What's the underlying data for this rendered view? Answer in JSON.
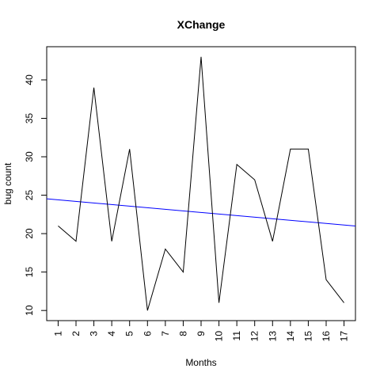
{
  "chart_data": {
    "type": "line",
    "title": "XChange",
    "xlabel": "Months",
    "ylabel": "bug count",
    "x": [
      1,
      2,
      3,
      4,
      5,
      6,
      7,
      8,
      9,
      10,
      11,
      12,
      13,
      14,
      15,
      16,
      17
    ],
    "x_tick_labels": [
      "1",
      "2",
      "3",
      "4",
      "5",
      "6",
      "7",
      "8",
      "9",
      "10",
      "11",
      "12",
      "13",
      "14",
      "15",
      "16",
      "17"
    ],
    "series": [
      {
        "values": [
          21,
          19,
          39,
          19,
          31,
          10,
          18,
          15,
          43,
          11,
          29,
          27,
          19,
          31,
          31,
          14,
          11
        ],
        "color": "#000000"
      }
    ],
    "trend_line": {
      "y_at_x0": 24.6,
      "slope": -0.205,
      "color": "#0000ff"
    },
    "xlim": [
      0.36,
      17.64
    ],
    "ylim": [
      8.68,
      44.32
    ],
    "y_ticks": [
      10,
      15,
      20,
      25,
      30,
      35,
      40
    ],
    "y_tick_labels": [
      "10",
      "15",
      "20",
      "25",
      "30",
      "35",
      "40"
    ],
    "grid": false,
    "legend": "none"
  }
}
